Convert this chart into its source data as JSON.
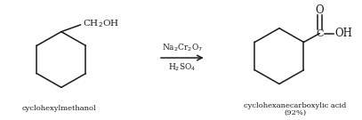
{
  "bg_color": "#ffffff",
  "text_color": "#1a1a1a",
  "reagent_line1": "Na$_2$Cr$_2$O$_7$",
  "reagent_line2": "H$_2$SO$_4$",
  "label_left": "cyclohexylmethanol",
  "label_right_line1": "cyclohexanecarboxylic acid",
  "label_right_line2": "(92%)",
  "arrow_color": "#1a1a1a",
  "line_color": "#1a1a1a",
  "figsize": [
    4.07,
    1.35
  ],
  "dpi": 100
}
